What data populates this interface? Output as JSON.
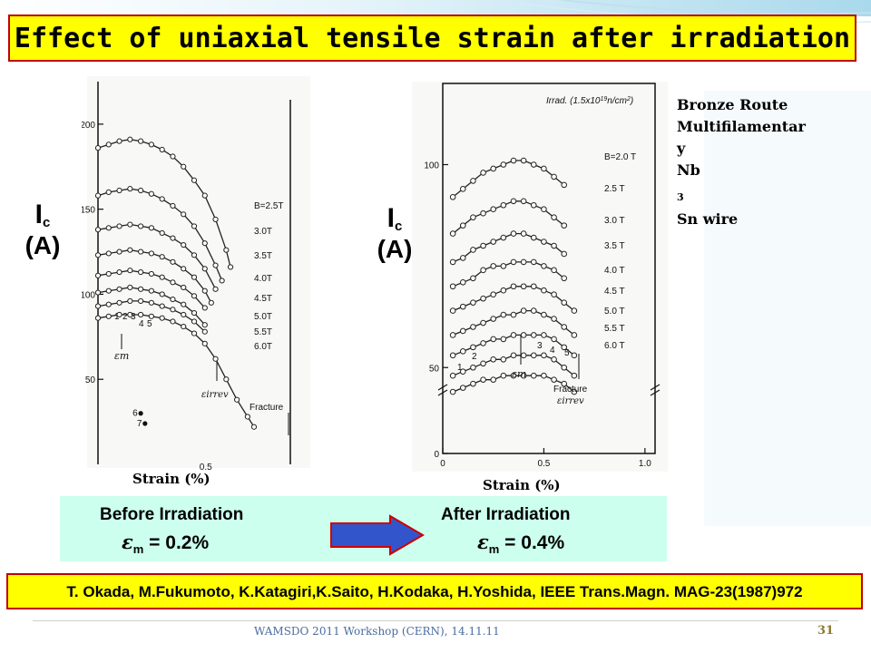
{
  "title": "Effect of uniaxial tensile strain after irradiation",
  "material": {
    "lines": [
      "Bronze Route",
      "Multifilamentar",
      "y",
      "Nb"
    ],
    "sub": "3",
    "tail": "Sn wire"
  },
  "y_label_main": "I",
  "y_label_sub": "c",
  "y_label_unit": "(A)",
  "strain_label": "Strain (%)",
  "comparison": {
    "before_label": "Before Irradiation",
    "before_eps_symbol": "ε",
    "before_eps_sub": "m",
    "before_eps_value": " = 0.2%",
    "after_label": "After Irradiation",
    "after_eps_symbol": "ε",
    "after_eps_sub": "m",
    "after_eps_value": " = 0.4%"
  },
  "reference": "T. Okada, M.Fukumoto, K.Katagiri,K.Saito, H.Kodaka, H.Yoshida, IEEE Trans.Magn. MAG-23(1987)972",
  "footer": "WAMSDO 2011 Workshop (CERN), 14.11.11",
  "page_number": "31",
  "colors": {
    "title_bg": "#ffff00",
    "title_border": "#c00000",
    "compare_bg": "#ccffee",
    "arrow_fill": "#3355cc",
    "arrow_border": "#cc0000"
  },
  "chart_data": [
    {
      "type": "line",
      "panel": "before irradiation",
      "xlim": [
        0,
        0.9
      ],
      "ylim": [
        0,
        225
      ],
      "y_ticks": [
        50,
        100,
        150,
        200
      ],
      "x_ticks": [
        0.5
      ],
      "series_labels": [
        "B=2.5T",
        "3.0T",
        "3.5T",
        "4.0T",
        "4.5T",
        "5.0T",
        "5.5T",
        "6.0T"
      ],
      "series": [
        {
          "name": "B=2.5T",
          "x": [
            0,
            0.05,
            0.1,
            0.15,
            0.2,
            0.25,
            0.3,
            0.35,
            0.4,
            0.45,
            0.5,
            0.55,
            0.6,
            0.62
          ],
          "y": [
            186,
            188,
            190,
            191,
            190,
            188,
            185,
            181,
            175,
            167,
            158,
            144,
            126,
            116
          ]
        },
        {
          "name": "3.0T",
          "x": [
            0,
            0.05,
            0.1,
            0.15,
            0.2,
            0.25,
            0.3,
            0.35,
            0.4,
            0.45,
            0.5,
            0.55,
            0.58
          ],
          "y": [
            158,
            160,
            161,
            162,
            161,
            159,
            156,
            152,
            147,
            140,
            130,
            117,
            108
          ]
        },
        {
          "name": "3.5T",
          "x": [
            0,
            0.05,
            0.1,
            0.15,
            0.2,
            0.25,
            0.3,
            0.35,
            0.4,
            0.45,
            0.5,
            0.55
          ],
          "y": [
            138,
            139,
            140,
            141,
            140,
            139,
            136,
            133,
            129,
            123,
            115,
            103
          ]
        },
        {
          "name": "4.0T",
          "x": [
            0,
            0.05,
            0.1,
            0.15,
            0.2,
            0.25,
            0.3,
            0.35,
            0.4,
            0.45,
            0.5,
            0.53
          ],
          "y": [
            123,
            124,
            125,
            126,
            125,
            124,
            122,
            119,
            115,
            110,
            102,
            95
          ]
        },
        {
          "name": "4.5T",
          "x": [
            0,
            0.05,
            0.1,
            0.15,
            0.2,
            0.25,
            0.3,
            0.35,
            0.4,
            0.45,
            0.5
          ],
          "y": [
            111,
            112,
            113,
            114,
            113,
            112,
            110,
            107,
            104,
            99,
            92
          ]
        },
        {
          "name": "5.0T",
          "x": [
            0,
            0.05,
            0.1,
            0.15,
            0.2,
            0.25,
            0.3,
            0.35,
            0.4,
            0.45,
            0.5
          ],
          "y": [
            101,
            102,
            103,
            104,
            103,
            102,
            100,
            97,
            94,
            89,
            82
          ]
        },
        {
          "name": "5.5T",
          "x": [
            0,
            0.05,
            0.1,
            0.15,
            0.2,
            0.25,
            0.3,
            0.35,
            0.4,
            0.45,
            0.5
          ],
          "y": [
            93,
            94,
            95,
            96,
            96,
            95,
            93,
            91,
            88,
            84,
            78
          ]
        },
        {
          "name": "6.0T",
          "x": [
            0,
            0.05,
            0.1,
            0.15,
            0.2,
            0.25,
            0.3,
            0.35,
            0.4,
            0.45,
            0.5,
            0.55,
            0.6,
            0.65,
            0.7,
            0.73
          ],
          "y": [
            86,
            87,
            88,
            88,
            88,
            87,
            86,
            84,
            81,
            77,
            71,
            62,
            50,
            38,
            28,
            22
          ]
        }
      ],
      "isolated_points": [
        {
          "label": "6",
          "x": 0.2,
          "y": 30
        },
        {
          "label": "7",
          "x": 0.22,
          "y": 24
        }
      ],
      "point_labels": [
        "1",
        "2",
        "3",
        "4",
        "5"
      ],
      "annotations": [
        "εm",
        "εirrev",
        "Fracture"
      ]
    },
    {
      "type": "line",
      "panel": "after irradiation",
      "xlim": [
        0,
        1.05
      ],
      "ylim": [
        0,
        120
      ],
      "y_ticks": [
        0,
        50,
        100
      ],
      "x_ticks": [
        0,
        0.5,
        1.0
      ],
      "x_tick_labels": [
        "0",
        "0.5",
        "1.0"
      ],
      "header": "Irrad. (1.5x10",
      "header_sup": "19",
      "header_tail": "n/cm",
      "header_sup2": "2",
      "header_close": ")",
      "series_labels": [
        "B=2.0 T",
        "2.5 T",
        "3.0 T",
        "3.5 T",
        "4.0 T",
        "4.5 T",
        "5.0 T",
        "5.5 T",
        "6.0 T"
      ],
      "series": [
        {
          "name": "B=2.0 T",
          "x": [
            0.05,
            0.1,
            0.15,
            0.2,
            0.25,
            0.3,
            0.35,
            0.4,
            0.45,
            0.5,
            0.55,
            0.6
          ],
          "y": [
            92,
            94,
            96,
            98,
            99,
            100,
            101,
            101,
            100,
            99,
            97,
            95
          ]
        },
        {
          "name": "2.5 T",
          "x": [
            0.05,
            0.1,
            0.15,
            0.2,
            0.25,
            0.3,
            0.35,
            0.4,
            0.45,
            0.5,
            0.55,
            0.6
          ],
          "y": [
            83,
            85,
            87,
            88,
            89,
            90,
            91,
            91,
            90,
            89,
            87,
            85
          ]
        },
        {
          "name": "3.0 T",
          "x": [
            0.05,
            0.1,
            0.15,
            0.2,
            0.25,
            0.3,
            0.35,
            0.4,
            0.45,
            0.5,
            0.55,
            0.6
          ],
          "y": [
            76,
            77,
            79,
            80,
            81,
            82,
            83,
            83,
            82,
            81,
            80,
            78
          ]
        },
        {
          "name": "3.5 T",
          "x": [
            0.05,
            0.1,
            0.15,
            0.2,
            0.25,
            0.3,
            0.35,
            0.4,
            0.45,
            0.5,
            0.55,
            0.6
          ],
          "y": [
            70,
            71,
            72,
            74,
            75,
            75,
            76,
            76,
            76,
            75,
            74,
            72
          ]
        },
        {
          "name": "4.0 T",
          "x": [
            0.05,
            0.1,
            0.15,
            0.2,
            0.25,
            0.3,
            0.35,
            0.4,
            0.45,
            0.5,
            0.55,
            0.6,
            0.65
          ],
          "y": [
            64,
            65,
            66,
            67,
            68,
            69,
            70,
            70,
            70,
            69,
            68,
            66,
            64
          ]
        },
        {
          "name": "4.5 T",
          "x": [
            0.05,
            0.1,
            0.15,
            0.2,
            0.25,
            0.3,
            0.35,
            0.4,
            0.45,
            0.5,
            0.55,
            0.6,
            0.65
          ],
          "y": [
            58,
            59,
            60,
            61,
            62,
            63,
            63,
            64,
            64,
            63,
            62,
            60,
            58
          ]
        },
        {
          "name": "5.0 T",
          "x": [
            0.05,
            0.1,
            0.15,
            0.2,
            0.25,
            0.3,
            0.35,
            0.4,
            0.45,
            0.5,
            0.55,
            0.6,
            0.65
          ],
          "y": [
            53,
            54,
            55,
            56,
            57,
            57,
            58,
            58,
            58,
            58,
            57,
            55,
            53
          ]
        },
        {
          "name": "5.5 T",
          "x": [
            0.05,
            0.1,
            0.15,
            0.2,
            0.25,
            0.3,
            0.35,
            0.4,
            0.45,
            0.5,
            0.55,
            0.6,
            0.65
          ],
          "y": [
            48,
            49,
            50,
            51,
            52,
            52,
            53,
            53,
            53,
            53,
            52,
            50,
            48
          ]
        },
        {
          "name": "6.0 T",
          "x": [
            0.05,
            0.1,
            0.15,
            0.2,
            0.25,
            0.3,
            0.35,
            0.4,
            0.45,
            0.5,
            0.55,
            0.6,
            0.65
          ],
          "y": [
            44,
            45,
            46,
            47,
            47,
            48,
            48,
            48,
            48,
            48,
            47,
            46,
            44
          ]
        }
      ],
      "point_labels": [
        "1",
        "2",
        "3",
        "4",
        "5"
      ],
      "annotations": [
        "εm",
        "Fracture",
        "εirrev"
      ]
    }
  ]
}
